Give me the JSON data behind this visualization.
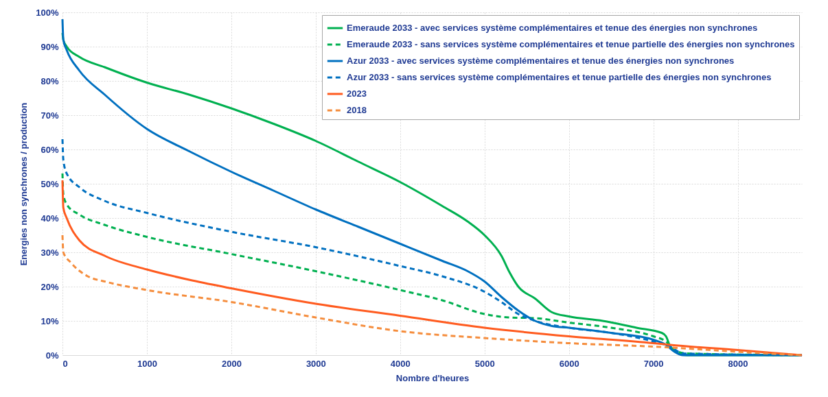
{
  "chart_data": {
    "type": "line",
    "xlabel": "Nombre d'heures",
    "ylabel": "Energies non synchrones / production",
    "xlim": [
      0,
      8760
    ],
    "xticks": [
      0,
      1000,
      2000,
      3000,
      4000,
      5000,
      6000,
      7000,
      8000
    ],
    "ylim": [
      0,
      100
    ],
    "yticks": [
      {
        "value": 0,
        "label": "0%"
      },
      {
        "value": 10,
        "label": "10%"
      },
      {
        "value": 20,
        "label": "20%"
      },
      {
        "value": 30,
        "label": "30%"
      },
      {
        "value": 40,
        "label": "40%"
      },
      {
        "value": 50,
        "label": "50%"
      },
      {
        "value": 60,
        "label": "60%"
      },
      {
        "value": 70,
        "label": "70%"
      },
      {
        "value": 80,
        "label": "80%"
      },
      {
        "value": 90,
        "label": "90%"
      },
      {
        "value": 100,
        "label": "100%"
      }
    ],
    "grid": true,
    "legend": "top right",
    "series": [
      {
        "name": "Emeraude 2033 - avec services système complémentaires et tenue des énergies non synchrones",
        "color": "#00b050",
        "line_style": "solid",
        "x": [
          0,
          10,
          50,
          200,
          500,
          1000,
          1500,
          2000,
          2500,
          3000,
          3500,
          4000,
          4500,
          4800,
          5000,
          5200,
          5300,
          5400,
          5600,
          5800,
          6000,
          6400,
          6800,
          7100,
          7150,
          7200,
          7300,
          7400,
          8760
        ],
        "values": [
          94,
          92,
          90,
          87,
          84,
          79.5,
          76,
          72,
          67.5,
          62.5,
          56.5,
          50.5,
          43.5,
          39,
          35,
          29,
          24,
          20,
          16.5,
          12.5,
          11.3,
          10,
          8,
          6.5,
          5.5,
          2.5,
          0.5,
          0,
          0
        ]
      },
      {
        "name": "Emeraude 2033 - sans services système complémentaires et tenue partielle des énergies non synchrones",
        "color": "#00b050",
        "line_style": "dashed",
        "x": [
          0,
          10,
          50,
          200,
          500,
          1000,
          2000,
          3000,
          4000,
          4500,
          5000,
          5300,
          5600,
          6000,
          6500,
          7000,
          7150,
          7250,
          7400,
          8760
        ],
        "values": [
          53,
          47,
          44,
          41,
          38,
          34.5,
          29.5,
          24.5,
          19,
          16,
          12,
          11,
          10.8,
          9.5,
          8,
          5.5,
          4,
          1.5,
          0.5,
          0
        ]
      },
      {
        "name": "Azur 2033 - avec services système complémentaires et tenue des énergies non synchrones",
        "color": "#0070c0",
        "line_style": "solid",
        "x": [
          0,
          10,
          50,
          200,
          500,
          1000,
          1500,
          2000,
          2500,
          3000,
          3500,
          4000,
          4500,
          4800,
          5000,
          5200,
          5400,
          5600,
          5800,
          6000,
          6500,
          7000,
          7150,
          7250,
          7350,
          8760
        ],
        "values": [
          98,
          92,
          89,
          83,
          76,
          66,
          59.5,
          53.5,
          48,
          42.5,
          37.5,
          32.5,
          27.5,
          24.5,
          21.5,
          17,
          13,
          10,
          8.5,
          8,
          6.5,
          4.5,
          3,
          1,
          0,
          0
        ]
      },
      {
        "name": "Azur 2033 - sans services système complémentaires et tenue partielle des énergies non synchrones",
        "color": "#0070c0",
        "line_style": "dashed",
        "x": [
          0,
          10,
          50,
          200,
          500,
          1000,
          2000,
          3000,
          4000,
          4500,
          5000,
          5200,
          5400,
          5600,
          6000,
          6500,
          7000,
          7200,
          7350,
          8760
        ],
        "values": [
          63,
          57,
          53,
          49,
          45,
          41.5,
          36,
          31.5,
          26,
          23,
          18.5,
          15.5,
          12,
          10,
          8,
          6.5,
          4,
          2.5,
          0.5,
          0
        ]
      },
      {
        "name": "2023",
        "color": "#ff5b1f",
        "line_style": "solid",
        "x": [
          0,
          10,
          50,
          200,
          500,
          1000,
          1500,
          2000,
          3000,
          4000,
          5000,
          6000,
          7000,
          7200,
          8000,
          8500,
          8760
        ],
        "values": [
          51,
          43,
          40,
          33.5,
          29,
          25,
          22,
          19.5,
          15,
          11.5,
          8,
          5.5,
          3.5,
          3,
          1.5,
          0.5,
          0
        ]
      },
      {
        "name": "2018",
        "color": "#f58d3d",
        "line_style": "dashed",
        "x": [
          0,
          10,
          100,
          300,
          500,
          1000,
          2000,
          3000,
          4000,
          5000,
          6000,
          7000,
          8000,
          8500,
          8760
        ],
        "values": [
          35,
          30,
          27,
          23,
          21.5,
          19,
          15.5,
          11,
          7,
          5,
          3.5,
          2.5,
          1,
          0.3,
          0
        ]
      }
    ]
  }
}
